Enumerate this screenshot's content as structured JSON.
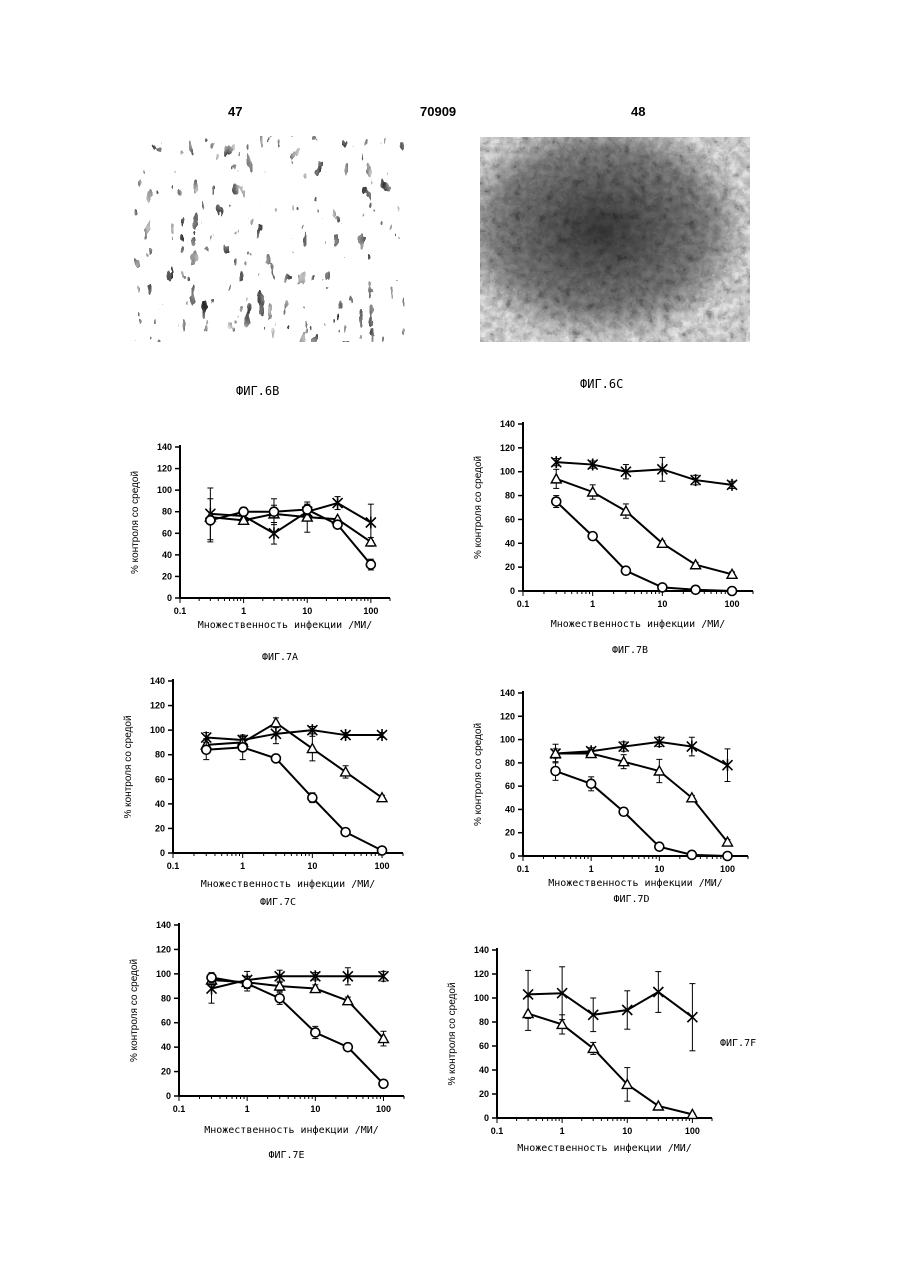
{
  "header": {
    "left_page": "47",
    "doc_number": "70909",
    "right_page": "48"
  },
  "figures": {
    "fig6b_caption": "ФИГ.6В",
    "fig6c_caption": "ФИГ.6С"
  },
  "chart_data": [
    {
      "id": "7A",
      "type": "line",
      "caption": "ФИГ.7А",
      "xlabel": "Множественность инфекции /МИ/",
      "ylabel": "% контроля со средой",
      "xscale": "log",
      "xlim": [
        0.1,
        200
      ],
      "ylim": [
        0,
        140
      ],
      "xticks": [
        "0.1",
        "1",
        "10",
        "100"
      ],
      "yticks": [
        "0",
        "20",
        "40",
        "60",
        "80",
        "100",
        "120",
        "140"
      ],
      "x": [
        0.3,
        1,
        3,
        10,
        30,
        100
      ],
      "series": [
        {
          "marker": "star",
          "values": [
            78,
            76,
            60,
            80,
            88,
            70
          ],
          "err": [
            24,
            4,
            10,
            6,
            6,
            17
          ]
        },
        {
          "marker": "triangle",
          "values": [
            75,
            72,
            78,
            75,
            73,
            52
          ],
          "err": [
            0,
            3,
            8,
            14,
            0,
            4
          ]
        },
        {
          "marker": "circle",
          "values": [
            72,
            80,
            80,
            82,
            68,
            31
          ],
          "err": [
            20,
            4,
            12,
            5,
            3,
            5
          ]
        }
      ]
    },
    {
      "id": "7B",
      "type": "line",
      "caption": "ФИГ.7В",
      "xlabel": "Множественность инфекции /МИ/",
      "ylabel": "% контроля со средой",
      "xscale": "log",
      "xlim": [
        0.1,
        200
      ],
      "ylim": [
        0,
        140
      ],
      "xticks": [
        "0.1",
        "1",
        "10",
        "100"
      ],
      "yticks": [
        "0",
        "20",
        "40",
        "60",
        "80",
        "100",
        "120",
        "140"
      ],
      "x": [
        0.3,
        1,
        3,
        10,
        30,
        100
      ],
      "series": [
        {
          "marker": "star",
          "values": [
            108,
            106,
            100,
            102,
            93,
            89
          ],
          "err": [
            3,
            3,
            6,
            10,
            4,
            3
          ]
        },
        {
          "marker": "triangle",
          "values": [
            94,
            83,
            67,
            40,
            22,
            14
          ],
          "err": [
            8,
            6,
            6,
            2,
            2,
            2
          ]
        },
        {
          "marker": "circle",
          "values": [
            75,
            46,
            17,
            3,
            1,
            0
          ],
          "err": [
            5,
            2,
            2,
            1,
            0,
            0
          ]
        }
      ]
    },
    {
      "id": "7C",
      "type": "line",
      "caption": "ФИГ.7С",
      "xlabel": "Множественность инфекции /МИ/",
      "ylabel": "% контроля со средой",
      "xscale": "log",
      "xlim": [
        0.1,
        200
      ],
      "ylim": [
        0,
        140
      ],
      "xticks": [
        "0.1",
        "1",
        "10",
        "100"
      ],
      "yticks": [
        "0",
        "20",
        "40",
        "60",
        "80",
        "100",
        "120",
        "140"
      ],
      "x": [
        0.3,
        1,
        3,
        10,
        30,
        100
      ],
      "series": [
        {
          "marker": "star",
          "values": [
            94,
            92,
            97,
            100,
            96,
            96
          ],
          "err": [
            4,
            3,
            8,
            3,
            2,
            2
          ]
        },
        {
          "marker": "triangle",
          "values": [
            88,
            90,
            106,
            85,
            66,
            45
          ],
          "err": [
            5,
            5,
            4,
            10,
            5,
            2
          ]
        },
        {
          "marker": "circle",
          "values": [
            84,
            86,
            77,
            45,
            17,
            2
          ],
          "err": [
            8,
            10,
            3,
            4,
            2,
            1
          ]
        }
      ]
    },
    {
      "id": "7D",
      "type": "line",
      "caption": "ФИГ.7D",
      "xlabel": "Множественность инфекции /МИ/",
      "ylabel": "% контроля со средой",
      "xscale": "log",
      "xlim": [
        0.1,
        200
      ],
      "ylim": [
        0,
        140
      ],
      "xticks": [
        "0.1",
        "1",
        "10",
        "100"
      ],
      "yticks": [
        "0",
        "20",
        "40",
        "60",
        "80",
        "100",
        "120",
        "140"
      ],
      "x": [
        0.3,
        1,
        3,
        10,
        30,
        100
      ],
      "series": [
        {
          "marker": "star",
          "values": [
            88,
            90,
            94,
            98,
            94,
            78
          ],
          "err": [
            8,
            3,
            4,
            4,
            8,
            14
          ]
        },
        {
          "marker": "triangle",
          "values": [
            88,
            88,
            81,
            73,
            50,
            12
          ],
          "err": [
            4,
            3,
            6,
            10,
            2,
            2
          ]
        },
        {
          "marker": "circle",
          "values": [
            73,
            62,
            38,
            8,
            1,
            0
          ],
          "err": [
            8,
            6,
            3,
            2,
            1,
            0
          ]
        }
      ]
    },
    {
      "id": "7E",
      "type": "line",
      "caption": "ФИГ.7Е",
      "xlabel": "Множественность инфекции /МИ/",
      "ylabel": "% контроля со средой",
      "xscale": "log",
      "xlim": [
        0.1,
        200
      ],
      "ylim": [
        0,
        140
      ],
      "xticks": [
        "0.1",
        "1",
        "10",
        "100"
      ],
      "yticks": [
        "0",
        "20",
        "40",
        "60",
        "80",
        "100",
        "120",
        "140"
      ],
      "x": [
        0.3,
        1,
        3,
        10,
        30,
        100
      ],
      "series": [
        {
          "marker": "star",
          "values": [
            88,
            95,
            98,
            98,
            98,
            98
          ],
          "err": [
            12,
            7,
            5,
            3,
            7,
            4
          ]
        },
        {
          "marker": "triangle",
          "values": [
            95,
            93,
            90,
            88,
            78,
            47
          ],
          "err": [
            4,
            5,
            4,
            3,
            3,
            6
          ]
        },
        {
          "marker": "circle",
          "values": [
            97,
            92,
            80,
            52,
            40,
            10
          ],
          "err": [
            4,
            6,
            5,
            5,
            2,
            2
          ]
        }
      ]
    },
    {
      "id": "7F",
      "type": "line",
      "caption": "ФИГ.7F",
      "xlabel": "Множественность инфекции /МИ/",
      "ylabel": "% контроля со средой",
      "xscale": "log",
      "xlim": [
        0.1,
        200
      ],
      "ylim": [
        0,
        140
      ],
      "xticks": [
        "0.1",
        "1",
        "10",
        "100"
      ],
      "yticks": [
        "0",
        "20",
        "40",
        "60",
        "80",
        "100",
        "120",
        "140"
      ],
      "x": [
        0.3,
        1,
        3,
        10,
        30,
        100
      ],
      "series": [
        {
          "marker": "cross",
          "values": [
            103,
            104,
            86,
            90,
            105,
            84
          ],
          "err": [
            20,
            22,
            14,
            16,
            17,
            28
          ]
        },
        {
          "marker": "triangle",
          "values": [
            87,
            78,
            58,
            28,
            10,
            3
          ],
          "err": [
            14,
            8,
            5,
            14,
            1,
            1
          ]
        }
      ]
    }
  ]
}
